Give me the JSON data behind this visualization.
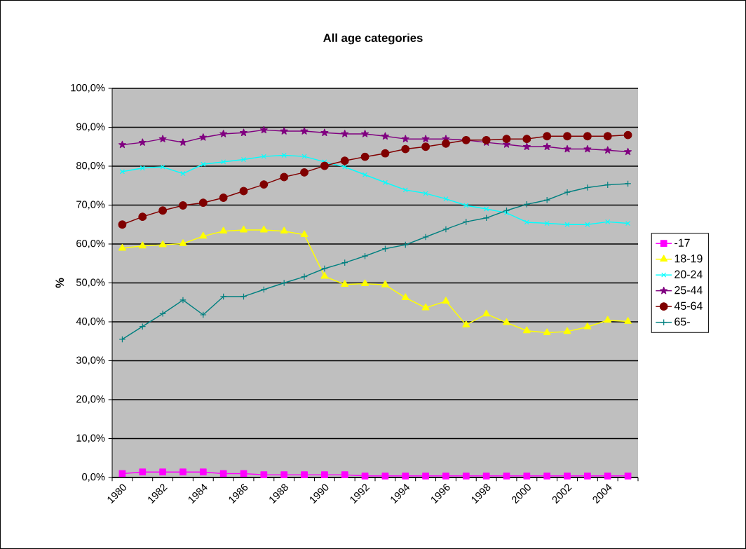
{
  "chart_data": {
    "type": "line",
    "title": "All age categories",
    "ylabel": "%",
    "categories": [
      "1980",
      null,
      "1982",
      null,
      "1984",
      null,
      "1986",
      null,
      "1988",
      null,
      "1990",
      null,
      "1992",
      null,
      "1994",
      null,
      "1996",
      null,
      "1998",
      null,
      "2000",
      null,
      "2002",
      null,
      "2004",
      null
    ],
    "series": [
      {
        "name": "-17",
        "color": "#ff00ff",
        "marker": "square",
        "values": [
          1.0,
          1.4,
          1.4,
          1.4,
          1.4,
          1.0,
          1.0,
          0.7,
          0.7,
          0.7,
          0.7,
          0.7,
          0.4,
          0.4,
          0.4,
          0.4,
          0.4,
          0.4,
          0.4,
          0.4,
          0.4,
          0.4,
          0.4,
          0.4,
          0.4,
          0.4
        ]
      },
      {
        "name": "18-19",
        "color": "#ffff00",
        "marker": "triangle",
        "values": [
          58.9,
          59.5,
          59.8,
          60.1,
          62.0,
          63.3,
          63.6,
          63.6,
          63.3,
          62.4,
          51.7,
          49.6,
          49.8,
          49.5,
          46.2,
          43.6,
          45.3,
          39.2,
          42.0,
          39.8,
          37.7,
          37.2,
          37.5,
          38.7,
          40.4,
          40.1
        ]
      },
      {
        "name": "20-24",
        "color": "#00ffff",
        "marker": "cross",
        "values": [
          78.6,
          79.5,
          79.8,
          78.1,
          80.5,
          81.1,
          81.7,
          82.5,
          82.8,
          82.5,
          81.1,
          79.8,
          77.8,
          75.8,
          73.9,
          73.0,
          71.6,
          69.9,
          69.0,
          68.0,
          65.6,
          65.3,
          65.0,
          65.0,
          65.7,
          65.3
        ]
      },
      {
        "name": "25-44",
        "color": "#800080",
        "marker": "star",
        "values": [
          85.5,
          86.1,
          87.0,
          86.1,
          87.4,
          88.3,
          88.6,
          89.3,
          89.0,
          89.0,
          88.6,
          88.3,
          88.3,
          87.7,
          87.0,
          87.0,
          87.0,
          86.7,
          86.1,
          85.6,
          85.0,
          85.0,
          84.4,
          84.4,
          84.1,
          83.7
        ]
      },
      {
        "name": "45-64",
        "color": "#800000",
        "marker": "circle",
        "values": [
          65.0,
          67.0,
          68.6,
          69.9,
          70.6,
          71.9,
          73.6,
          75.3,
          77.2,
          78.4,
          80.1,
          81.4,
          82.4,
          83.3,
          84.4,
          85.0,
          85.8,
          86.7,
          86.7,
          87.0,
          87.0,
          87.7,
          87.7,
          87.7,
          87.7,
          88.0
        ]
      },
      {
        "name": "65-",
        "color": "#008080",
        "marker": "plus",
        "values": [
          35.5,
          38.8,
          42.1,
          45.6,
          41.8,
          46.5,
          46.5,
          48.3,
          50.0,
          51.6,
          53.7,
          55.2,
          56.9,
          58.8,
          59.8,
          61.8,
          63.8,
          65.7,
          66.7,
          68.6,
          70.2,
          71.3,
          73.3,
          74.5,
          75.2,
          75.5
        ]
      }
    ],
    "ylim": [
      0,
      100
    ],
    "yticks": [
      {
        "value": 0,
        "label": "0,0%"
      },
      {
        "value": 10,
        "label": "10,0%"
      },
      {
        "value": 20,
        "label": "20,0%"
      },
      {
        "value": 30,
        "label": "30,0%"
      },
      {
        "value": 40,
        "label": "40,0%"
      },
      {
        "value": 50,
        "label": "50,0%"
      },
      {
        "value": 60,
        "label": "60,0%"
      },
      {
        "value": 70,
        "label": "70,0%"
      },
      {
        "value": 80,
        "label": "80,0%"
      },
      {
        "value": 90,
        "label": "90,0%"
      },
      {
        "value": 100,
        "label": "100,0%"
      }
    ],
    "grid": "y",
    "legend": "right"
  }
}
